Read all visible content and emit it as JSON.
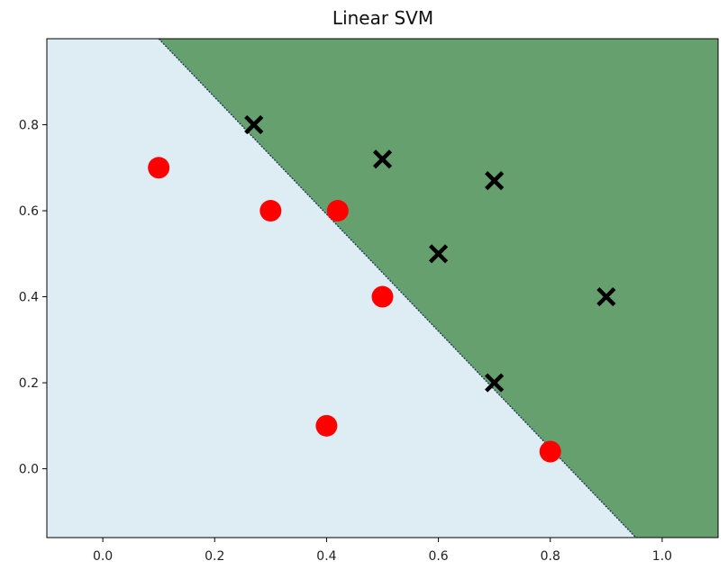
{
  "chart_data": {
    "type": "scatter",
    "title": "Linear SVM",
    "xlabel": "",
    "ylabel": "",
    "xlim": [
      -0.1,
      1.1
    ],
    "ylim": [
      -0.16,
      1.0
    ],
    "x_ticks": [
      0.0,
      0.2,
      0.4,
      0.6,
      0.8,
      1.0
    ],
    "x_tick_labels": [
      "0.0",
      "0.2",
      "0.4",
      "0.6",
      "0.8",
      "1.0"
    ],
    "y_ticks": [
      0.0,
      0.2,
      0.4,
      0.6,
      0.8
    ],
    "y_tick_labels": [
      "0.0",
      "0.2",
      "0.4",
      "0.6",
      "0.8"
    ],
    "grid": false,
    "decision_boundary": {
      "points": [
        [
          0.1,
          1.0
        ],
        [
          0.953,
          -0.16
        ]
      ],
      "lower_region_color": "#deecf4",
      "upper_region_color": "#66a06f"
    },
    "series": [
      {
        "marker": "circle",
        "color": "#ff0000",
        "points": [
          [
            0.1,
            0.7
          ],
          [
            0.3,
            0.6
          ],
          [
            0.42,
            0.6
          ],
          [
            0.5,
            0.4
          ],
          [
            0.4,
            0.1
          ],
          [
            0.8,
            0.04
          ]
        ]
      },
      {
        "marker": "x",
        "color": "#000000",
        "points": [
          [
            0.27,
            0.8
          ],
          [
            0.5,
            0.72
          ],
          [
            0.7,
            0.67
          ],
          [
            0.6,
            0.5
          ],
          [
            0.9,
            0.4
          ],
          [
            0.7,
            0.2
          ]
        ]
      }
    ]
  }
}
